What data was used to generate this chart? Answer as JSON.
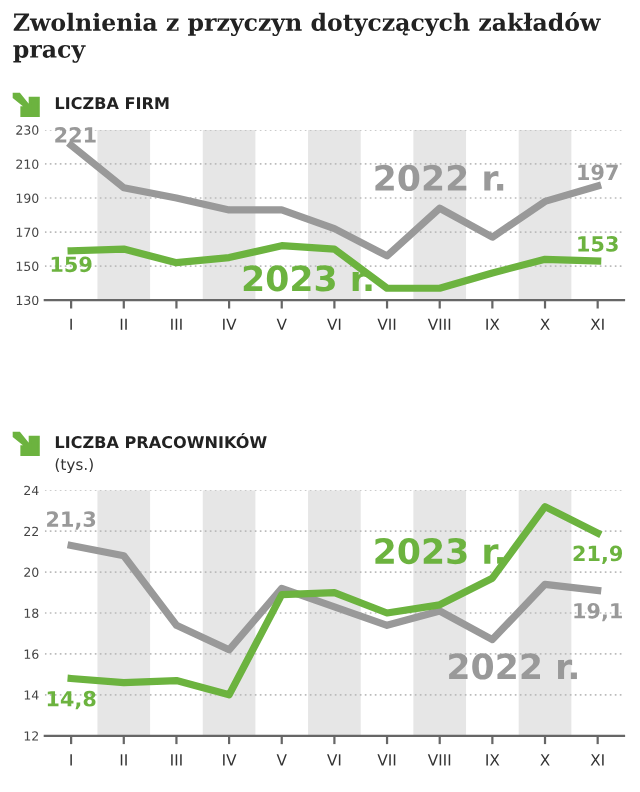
{
  "chart_data": [
    {
      "type": "line",
      "title": "Zwolnienia z przyczyn dotyczących zakładów pracy",
      "subtitle": "LICZBA FIRM",
      "categories": [
        "I",
        "II",
        "III",
        "IV",
        "V",
        "VI",
        "VII",
        "VIII",
        "IX",
        "X",
        "XI"
      ],
      "series": [
        {
          "name": "2022 r.",
          "color": "#999999",
          "values": [
            221,
            196,
            190,
            183,
            183,
            172,
            156,
            184,
            167,
            188,
            197
          ],
          "value_labels": [
            "221",
            null,
            null,
            null,
            null,
            null,
            null,
            null,
            null,
            null,
            "197"
          ]
        },
        {
          "name": "2023 r.",
          "color": "#6cb33f",
          "values": [
            159,
            160,
            152,
            155,
            162,
            160,
            137,
            137,
            146,
            154,
            153
          ],
          "value_labels": [
            "159",
            null,
            null,
            null,
            null,
            null,
            null,
            null,
            null,
            null,
            "153"
          ]
        }
      ],
      "ylim": [
        130,
        230
      ],
      "yticks": [
        130,
        150,
        170,
        190,
        210,
        230
      ],
      "grid": "y",
      "line_style": "solid",
      "marker": "none",
      "bands": [
        {
          "axis": "x",
          "from": "II",
          "to": "II",
          "color": "#e6e6e6"
        },
        {
          "axis": "x",
          "from": "IV",
          "to": "IV",
          "color": "#e6e6e6"
        },
        {
          "axis": "x",
          "from": "VI",
          "to": "VI",
          "color": "#e6e6e6"
        },
        {
          "axis": "x",
          "from": "VIII",
          "to": "VIII",
          "color": "#e6e6e6"
        },
        {
          "axis": "x",
          "from": "X",
          "to": "X",
          "color": "#e6e6e6"
        }
      ]
    },
    {
      "type": "line",
      "title": "LICZBA PRACOWNIKÓW",
      "ylabel": "(tys.)",
      "categories": [
        "I",
        "II",
        "III",
        "IV",
        "V",
        "VI",
        "VII",
        "VIII",
        "IX",
        "X",
        "XI"
      ],
      "series": [
        {
          "name": "2022 r.",
          "color": "#999999",
          "values": [
            21.3,
            20.8,
            17.4,
            16.2,
            19.2,
            18.3,
            17.4,
            18.1,
            16.7,
            19.4,
            19.1
          ],
          "value_labels": [
            "21,3",
            null,
            null,
            null,
            null,
            null,
            null,
            null,
            null,
            null,
            "19,1"
          ]
        },
        {
          "name": "2023 r.",
          "color": "#6cb33f",
          "values": [
            14.8,
            14.6,
            14.7,
            14.0,
            18.9,
            19.0,
            18.0,
            18.4,
            19.7,
            23.2,
            21.9
          ],
          "value_labels": [
            "14,8",
            null,
            null,
            null,
            null,
            null,
            null,
            null,
            null,
            null,
            "21,9"
          ]
        }
      ],
      "ylim": [
        12,
        24
      ],
      "yticks": [
        12,
        14,
        16,
        18,
        20,
        22,
        24
      ],
      "grid": "y",
      "line_style": "solid",
      "marker": "none",
      "bands": [
        {
          "axis": "x",
          "from": "II",
          "to": "II",
          "color": "#e6e6e6"
        },
        {
          "axis": "x",
          "from": "IV",
          "to": "IV",
          "color": "#e6e6e6"
        },
        {
          "axis": "x",
          "from": "VI",
          "to": "VI",
          "color": "#e6e6e6"
        },
        {
          "axis": "x",
          "from": "VIII",
          "to": "VIII",
          "color": "#e6e6e6"
        },
        {
          "axis": "x",
          "from": "X",
          "to": "X",
          "color": "#e6e6e6"
        }
      ]
    }
  ]
}
